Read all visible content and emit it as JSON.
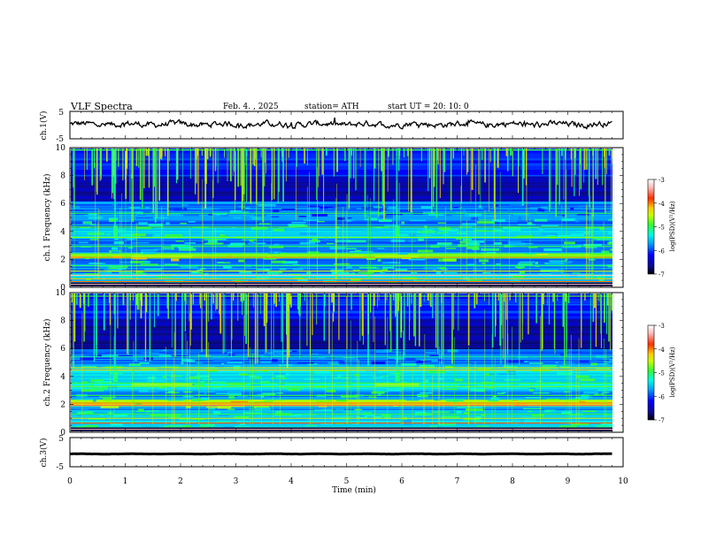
{
  "header": {
    "title": "VLF Spectra",
    "date": "Feb. 4. , 2025",
    "station": "station= ATH",
    "start": "start UT = 20: 10: 0"
  },
  "chart_data": {
    "type": "heatmap",
    "title": "VLF Spectra",
    "x": {
      "label": "Time (min)",
      "range": [
        0,
        10
      ],
      "ticks": [
        "0",
        "1",
        "2",
        "3",
        "4",
        "5",
        "6",
        "7",
        "8",
        "9",
        "10"
      ]
    },
    "panels": [
      {
        "id": "ch1-waveform",
        "type": "line",
        "ylabel": "ch.1(V)",
        "ylim": [
          -5,
          5
        ],
        "yticks": [
          "5",
          "-5"
        ],
        "data_end_min": 9.8,
        "mean_level_v": 0.3,
        "amplitude_v": 0.9
      },
      {
        "id": "ch1-spectrogram",
        "type": "heatmap",
        "ylabel": "ch.1 Frequency (kHz)",
        "ylim": [
          0,
          10
        ],
        "yticks": [
          "0",
          "2",
          "4",
          "6",
          "8",
          "10"
        ],
        "data_end_min": 9.8,
        "colorbar": {
          "label": "log(PSD)(V²/Hz)",
          "range": [
            -7,
            -3
          ],
          "ticks": [
            "-3",
            "-4",
            "-5",
            "-6",
            "-7"
          ]
        },
        "features": {
          "strong_band_khz": [
            2.0,
            2.4
          ],
          "mid_band_khz": [
            3.5,
            4.2
          ],
          "low_band_khz": [
            0.3,
            1.0
          ],
          "bright_bursts_min": [
            0.8,
            5.9
          ],
          "dark_quiet_region_khz": [
            6.2,
            8.0
          ]
        }
      },
      {
        "id": "ch2-spectrogram",
        "type": "heatmap",
        "ylabel": "ch.2 Frequency (kHz)",
        "ylim": [
          0,
          10
        ],
        "yticks": [
          "0",
          "2",
          "4",
          "6",
          "8",
          "10"
        ],
        "data_end_min": 9.8,
        "colorbar": {
          "label": "log(PSD)(V²/Hz)",
          "range": [
            -7,
            -3
          ],
          "ticks": [
            "-3",
            "-4",
            "-5",
            "-6",
            "-7"
          ]
        },
        "features": {
          "strong_band_khz": [
            1.8,
            2.3
          ],
          "mid_band_khz": [
            3.0,
            4.8
          ],
          "low_band_khz": [
            0.2,
            1.5
          ],
          "bright_bursts_min": [
            0.8,
            5.9
          ],
          "dark_quiet_region_khz": [
            6.0,
            8.2
          ]
        }
      },
      {
        "id": "ch3-waveform",
        "type": "line",
        "ylabel": "ch.3(V)",
        "ylim": [
          -5,
          5
        ],
        "yticks": [
          "5",
          "-5"
        ],
        "data_end_min": 9.8,
        "mean_level_v": -0.6,
        "amplitude_v": 0.15
      }
    ]
  },
  "colors": {
    "colormap": [
      "#000000",
      "#0a0a90",
      "#0000ff",
      "#00a0ff",
      "#00ffe0",
      "#30ff30",
      "#c8ff00",
      "#ffc800",
      "#ff3000",
      "#ffc0c0",
      "#ffffff"
    ],
    "axes": "#000000",
    "background": "#ffffff"
  }
}
